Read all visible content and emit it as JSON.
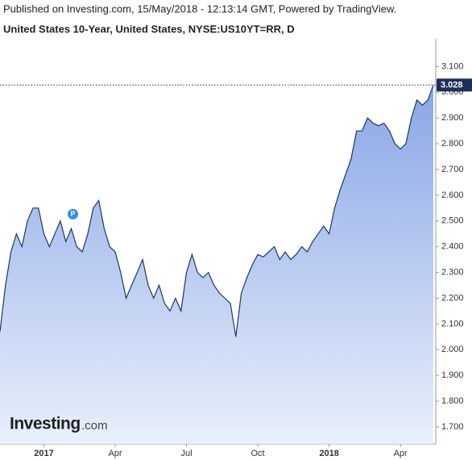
{
  "chart_data": {
    "type": "area",
    "header": "Published on Investing.com, 15/May/2018 - 12:13:14 GMT, Powered by TradingView.",
    "title": "United States 10-Year, United States, NYSE:US10YT=RR, D",
    "watermark": [
      "Investing",
      ".com"
    ],
    "marker": "P",
    "last_price": 3.028,
    "categories": [
      null,
      null,
      null,
      null,
      null,
      null,
      null,
      null,
      "2017",
      null,
      null,
      null,
      null,
      null,
      null,
      null,
      null,
      null,
      null,
      null,
      null,
      "Apr",
      null,
      null,
      null,
      null,
      null,
      null,
      null,
      null,
      null,
      null,
      null,
      null,
      "Jul",
      null,
      null,
      null,
      null,
      null,
      null,
      null,
      null,
      null,
      null,
      null,
      null,
      "Oct",
      null,
      null,
      null,
      null,
      null,
      null,
      null,
      null,
      null,
      null,
      null,
      null,
      "2018",
      null,
      null,
      null,
      null,
      null,
      null,
      null,
      null,
      null,
      null,
      null,
      null,
      "Apr",
      null,
      null,
      null,
      null,
      null,
      null
    ],
    "series": [
      {
        "name": "US10YT=RR",
        "color": "#1c3766",
        "fill_top": "#8aa6e6",
        "fill_bottom": "#e9f0fc",
        "values": [
          2.07,
          2.25,
          2.38,
          2.45,
          2.4,
          2.5,
          2.55,
          2.55,
          2.45,
          2.4,
          2.45,
          2.5,
          2.42,
          2.47,
          2.4,
          2.38,
          2.45,
          2.55,
          2.58,
          2.47,
          2.4,
          2.38,
          2.3,
          2.2,
          2.25,
          2.3,
          2.35,
          2.25,
          2.2,
          2.25,
          2.18,
          2.15,
          2.2,
          2.15,
          2.3,
          2.37,
          2.3,
          2.28,
          2.3,
          2.25,
          2.22,
          2.2,
          2.18,
          2.05,
          2.22,
          2.28,
          2.33,
          2.37,
          2.36,
          2.38,
          2.4,
          2.35,
          2.38,
          2.35,
          2.37,
          2.4,
          2.38,
          2.42,
          2.45,
          2.48,
          2.45,
          2.55,
          2.62,
          2.68,
          2.74,
          2.85,
          2.85,
          2.9,
          2.88,
          2.87,
          2.88,
          2.85,
          2.8,
          2.78,
          2.8,
          2.9,
          2.97,
          2.95,
          2.97,
          3.028
        ]
      }
    ],
    "ylim": [
      1.634,
      3.186
    ],
    "yticks": [
      {
        "value": 1.7,
        "label": "1.700"
      },
      {
        "value": 1.8,
        "label": "1.800"
      },
      {
        "value": 1.9,
        "label": "1.900"
      },
      {
        "value": 2.0,
        "label": "2.000"
      },
      {
        "value": 2.1,
        "label": "2.100"
      },
      {
        "value": 2.2,
        "label": "2.200"
      },
      {
        "value": 2.3,
        "label": "2.300"
      },
      {
        "value": 2.4,
        "label": "2.400"
      },
      {
        "value": 2.5,
        "label": "2.500"
      },
      {
        "value": 2.6,
        "label": "2.600"
      },
      {
        "value": 2.7,
        "label": "2.700"
      },
      {
        "value": 2.8,
        "label": "2.800"
      },
      {
        "value": 2.9,
        "label": "2.900"
      },
      {
        "value": 3.0,
        "label": "3.000"
      },
      {
        "value": 3.1,
        "label": "3.100"
      }
    ],
    "grid": false
  }
}
